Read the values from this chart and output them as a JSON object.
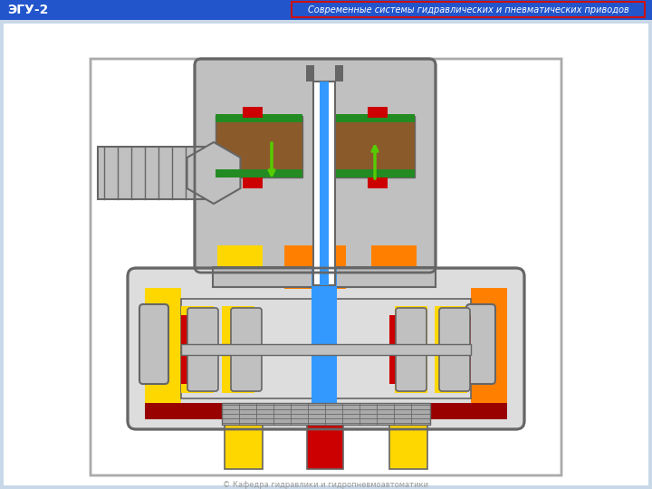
{
  "title_left": "ЭГУ-2",
  "title_right": "Современные системы гидравлических и пневматических приводов",
  "header_bg": "#2255CC",
  "header_fg": "#FFFFFF",
  "box_border": "#CC1111",
  "page_bg": "#C8D8E8",
  "body_bg": "#FFFFFF",
  "figsize": [
    7.2,
    5.4
  ],
  "dpi": 100,
  "colors": {
    "gray": "#BBBBBB",
    "dgray": "#666666",
    "lgray": "#DDDDDD",
    "slvr": "#C0C0C0",
    "yellow": "#FFD700",
    "orange": "#FF8000",
    "blue": "#3399FF",
    "red": "#CC0000",
    "dred": "#990000",
    "black": "#222222",
    "white": "#FFFFFF",
    "brn": "#8B5A2B",
    "grn": "#228B22",
    "lgreen": "#55CC00"
  }
}
